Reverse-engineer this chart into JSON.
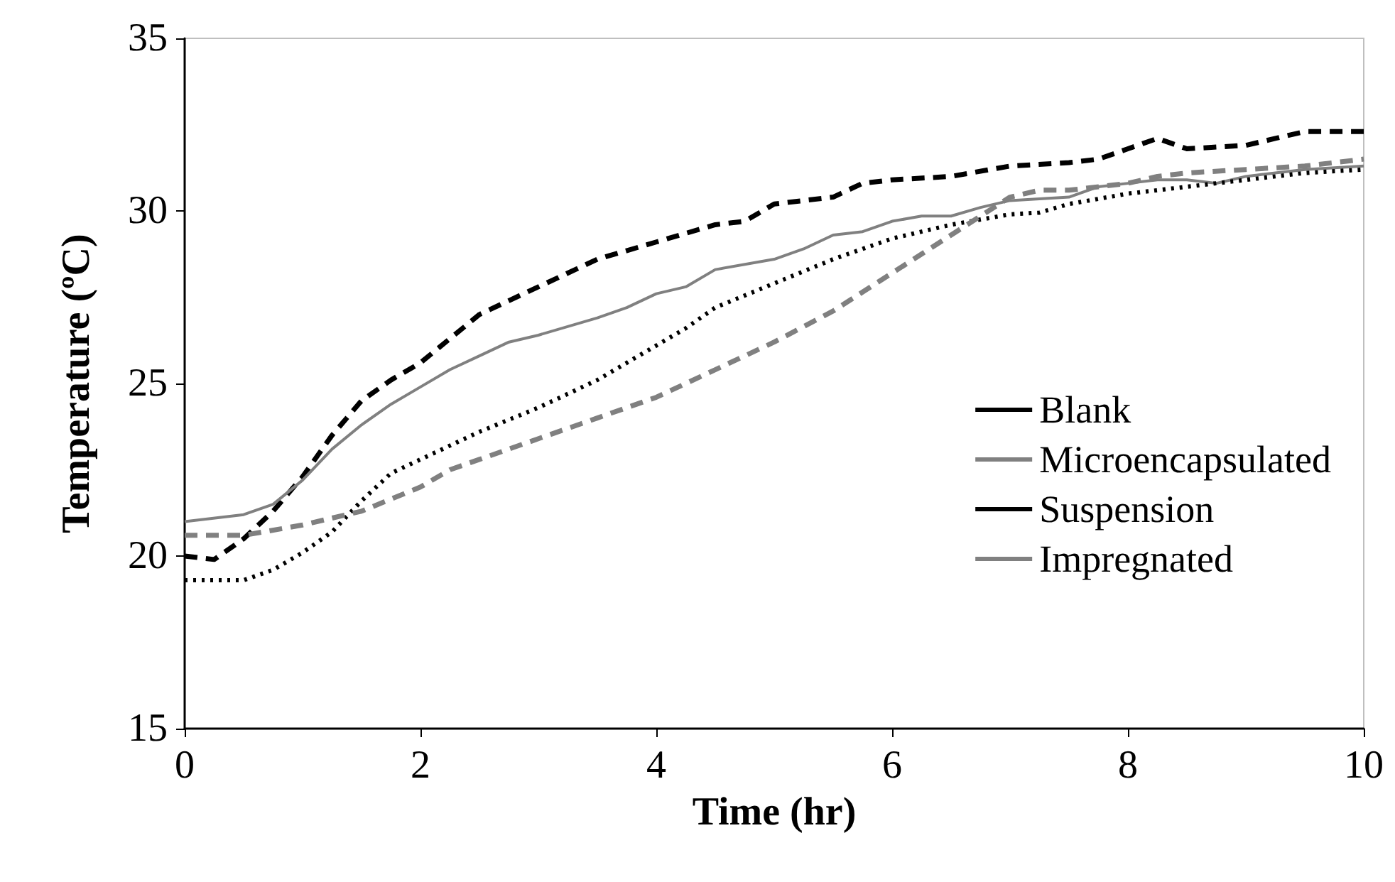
{
  "chart_data": {
    "type": "line",
    "xlabel": "Time (hr)",
    "ylabel": "Temperature (ºC)",
    "xlim": [
      0,
      10
    ],
    "xticks": [
      0,
      2,
      4,
      6,
      8,
      10
    ],
    "ylim": [
      15,
      35
    ],
    "yticks": [
      15,
      20,
      25,
      30,
      35
    ],
    "grid": false,
    "legend": "right",
    "marker": "none",
    "series": [
      {
        "name": "Blank",
        "color": "#000000",
        "line_style": "dashed",
        "x": [
          0,
          0.25,
          0.5,
          0.75,
          1,
          1.25,
          1.5,
          1.75,
          2,
          2.25,
          2.5,
          2.75,
          3,
          3.5,
          4,
          4.5,
          4.75,
          5,
          5.5,
          5.75,
          6,
          6.5,
          7,
          7.5,
          7.75,
          8,
          8.25,
          8.5,
          9,
          9.25,
          9.5,
          10
        ],
        "values": [
          20.0,
          19.9,
          20.5,
          21.3,
          22.3,
          23.5,
          24.5,
          25.1,
          25.6,
          26.3,
          27.0,
          27.4,
          27.8,
          28.6,
          29.1,
          29.6,
          29.7,
          30.2,
          30.4,
          30.8,
          30.9,
          31.0,
          31.3,
          31.4,
          31.5,
          31.8,
          32.1,
          31.8,
          31.9,
          32.1,
          32.3,
          32.3
        ]
      },
      {
        "name": "Microencapsulated",
        "color": "#808080",
        "line_style": "solid",
        "x": [
          0,
          0.5,
          0.75,
          1,
          1.25,
          1.5,
          1.75,
          2,
          2.25,
          2.5,
          2.75,
          3,
          3.5,
          3.75,
          4,
          4.25,
          4.5,
          5,
          5.25,
          5.5,
          5.75,
          6,
          6.25,
          6.5,
          6.75,
          7,
          7.5,
          7.75,
          8,
          8.25,
          8.5,
          8.75,
          9,
          9.5,
          10
        ],
        "values": [
          21.0,
          21.2,
          21.5,
          22.2,
          23.1,
          23.8,
          24.4,
          24.9,
          25.4,
          25.8,
          26.2,
          26.4,
          26.9,
          27.2,
          27.6,
          27.8,
          28.3,
          28.6,
          28.9,
          29.3,
          29.4,
          29.7,
          29.85,
          29.85,
          30.1,
          30.3,
          30.4,
          30.7,
          30.8,
          30.9,
          30.9,
          30.8,
          31.0,
          31.2,
          31.3
        ]
      },
      {
        "name": "Suspension",
        "color": "#000000",
        "line_style": "dotted",
        "x": [
          0,
          0.5,
          0.75,
          1,
          1.25,
          1.5,
          1.75,
          2,
          2.5,
          3,
          3.5,
          4,
          4.25,
          4.5,
          5,
          5.5,
          6,
          6.5,
          7,
          7.25,
          7.5,
          8,
          8.5,
          9,
          9.5,
          10
        ],
        "values": [
          19.3,
          19.3,
          19.6,
          20.1,
          20.7,
          21.6,
          22.4,
          22.8,
          23.6,
          24.3,
          25.1,
          26.1,
          26.6,
          27.2,
          27.9,
          28.6,
          29.2,
          29.6,
          29.9,
          29.95,
          30.2,
          30.5,
          30.7,
          30.9,
          31.1,
          31.2
        ]
      },
      {
        "name": "Impregnated",
        "color": "#808080",
        "line_style": "dashed",
        "x": [
          0,
          0.5,
          1,
          1.5,
          2,
          2.25,
          2.5,
          3,
          3.5,
          4,
          4.5,
          5,
          5.5,
          6,
          6.5,
          7,
          7.25,
          7.5,
          8,
          8.25,
          8.5,
          9,
          9.5,
          10
        ],
        "values": [
          20.6,
          20.6,
          20.9,
          21.3,
          22.0,
          22.5,
          22.8,
          23.4,
          24.0,
          24.6,
          25.4,
          26.2,
          27.1,
          28.2,
          29.3,
          30.4,
          30.6,
          30.6,
          30.8,
          31.0,
          31.1,
          31.2,
          31.3,
          31.5
        ]
      }
    ]
  }
}
